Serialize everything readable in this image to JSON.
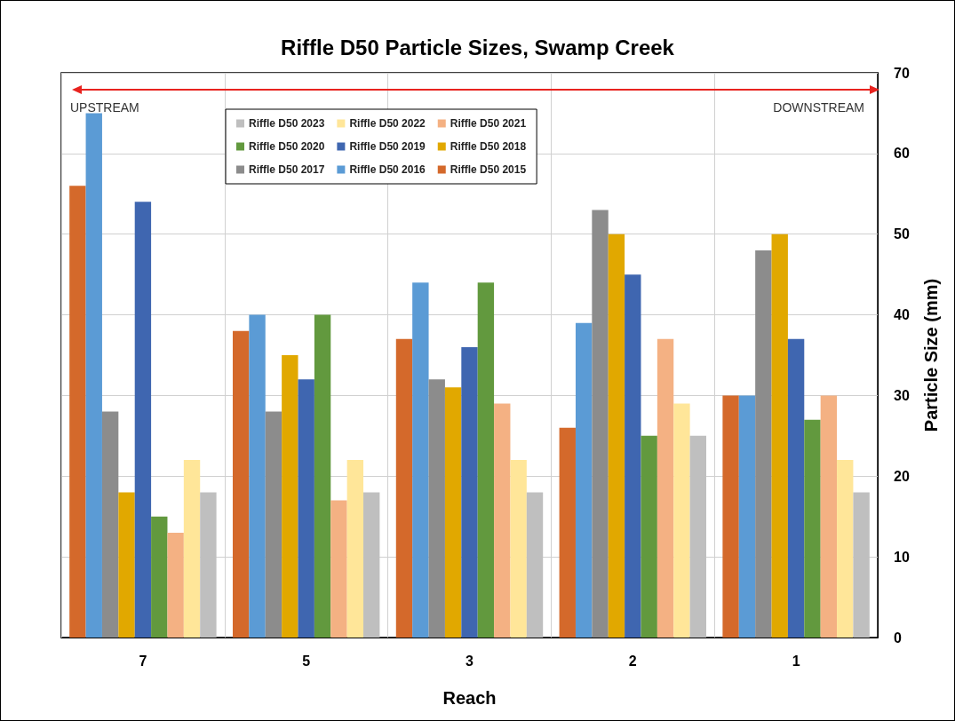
{
  "chart_data": {
    "type": "bar",
    "title": "Riffle D50 Particle Sizes, Swamp Creek",
    "xlabel": "Reach",
    "ylabel": "Particle Size (mm)",
    "categories": [
      "7",
      "5",
      "3",
      "2",
      "1"
    ],
    "series": [
      {
        "name": "Riffle D50 2015",
        "color": "#d4692b",
        "values": [
          56,
          38,
          37,
          26,
          30
        ]
      },
      {
        "name": "Riffle D50 2016",
        "color": "#5b9bd5",
        "values": [
          65,
          40,
          44,
          39,
          30
        ]
      },
      {
        "name": "Riffle D50 2017",
        "color": "#8c8c8c",
        "values": [
          28,
          28,
          32,
          53,
          48
        ]
      },
      {
        "name": "Riffle D50 2018",
        "color": "#e1a800",
        "values": [
          18,
          35,
          31,
          50,
          50
        ]
      },
      {
        "name": "Riffle D50 2019",
        "color": "#3f66b0",
        "values": [
          54,
          32,
          36,
          45,
          37
        ]
      },
      {
        "name": "Riffle D50 2020",
        "color": "#62993e",
        "values": [
          15,
          40,
          44,
          25,
          27
        ]
      },
      {
        "name": "Riffle D50 2021",
        "color": "#f4b183",
        "values": [
          13,
          17,
          29,
          37,
          30
        ]
      },
      {
        "name": "Riffle D50 2022",
        "color": "#ffe699",
        "values": [
          22,
          22,
          22,
          29,
          22
        ]
      },
      {
        "name": "Riffle D50 2023",
        "color": "#bfbfbf",
        "values": [
          18,
          18,
          18,
          25,
          18
        ]
      }
    ],
    "ylim": [
      0,
      70
    ],
    "yticks": [
      0,
      10,
      20,
      30,
      40,
      50,
      60,
      70
    ],
    "grid": true,
    "legend": "top left",
    "annotations": [
      "UPSTREAM",
      "DOWNSTREAM"
    ]
  }
}
